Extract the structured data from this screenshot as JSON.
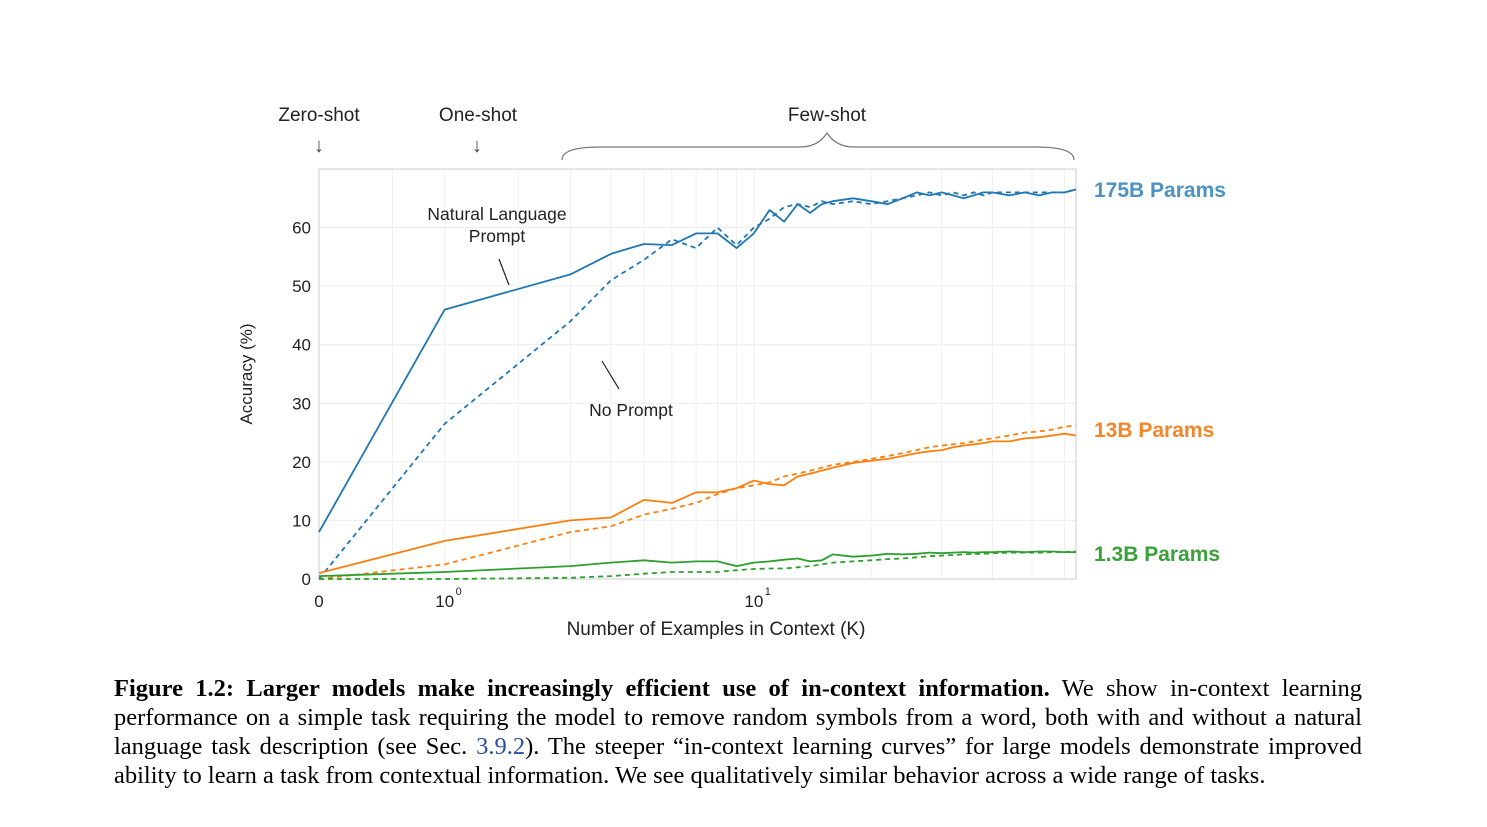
{
  "chart_data": {
    "type": "line",
    "xlabel": "Number of Examples in Context  (K)",
    "ylabel": "Accuracy (%)",
    "xscale": "symlog",
    "xlim": [
      0,
      64
    ],
    "ylim": [
      0,
      70
    ],
    "x_ticks": [
      {
        "value": 0,
        "base": "0",
        "exp": ""
      },
      {
        "value": 1,
        "base": "10",
        "exp": "0"
      },
      {
        "value": 10,
        "base": "10",
        "exp": "1"
      }
    ],
    "y_ticks": [
      0,
      10,
      20,
      30,
      40,
      50,
      60
    ],
    "grid": true,
    "regime_labels": {
      "zero_shot": "Zero-shot",
      "one_shot": "One-shot",
      "few_shot": "Few-shot"
    },
    "annotations": {
      "natural_language": [
        "Natural Language",
        "Prompt"
      ],
      "no_prompt": "No Prompt"
    },
    "colors": {
      "blue": "#1f77b4",
      "orange": "#ff7f0e",
      "green": "#2ca02c"
    },
    "model_labels": [
      {
        "text": "175B Params",
        "color": "#4b93c4"
      },
      {
        "text": "13B Params",
        "color": "#f2862a"
      },
      {
        "text": "1.3B Params",
        "color": "#3aa03a"
      }
    ],
    "series": [
      {
        "model": "175B",
        "prompt": "natural language",
        "style": "solid",
        "color": "#1f77b4",
        "x": [
          0,
          1,
          3,
          4,
          5,
          6,
          7,
          8,
          9,
          10,
          11,
          12,
          13,
          14,
          15,
          16,
          18,
          20,
          22,
          24,
          26,
          28,
          30,
          32,
          34,
          36,
          38,
          40,
          44,
          48,
          52,
          56,
          60,
          64
        ],
        "y": [
          8,
          46,
          52,
          55.5,
          57.2,
          57,
          59,
          59,
          56.5,
          59,
          63,
          61,
          64,
          62.5,
          64,
          64.5,
          65,
          64.5,
          64,
          65,
          66,
          65.5,
          66,
          65.5,
          65,
          65.5,
          66,
          66,
          65.5,
          66,
          65.5,
          66,
          66,
          66.5
        ]
      },
      {
        "model": "175B",
        "prompt": "none",
        "style": "dashed",
        "color": "#1f77b4",
        "x": [
          0,
          1,
          3,
          4,
          5,
          6,
          7,
          8,
          9,
          10,
          11,
          12,
          13,
          14,
          15,
          16,
          18,
          20,
          22,
          24,
          26,
          28,
          30,
          32,
          34,
          36,
          38,
          40,
          44,
          48,
          52,
          56,
          60,
          64
        ],
        "y": [
          0,
          26.5,
          44,
          51,
          54.5,
          58,
          56.5,
          60,
          57,
          60,
          61.5,
          63.5,
          64,
          63.5,
          64.5,
          64,
          64.5,
          64,
          64.5,
          65,
          65.5,
          66,
          65.5,
          66,
          65.5,
          66,
          65.5,
          66,
          66,
          66,
          66,
          66,
          66,
          66.5
        ]
      },
      {
        "model": "13B",
        "prompt": "natural language",
        "style": "solid",
        "color": "#ff7f0e",
        "x": [
          0,
          1,
          3,
          4,
          5,
          6,
          7,
          8,
          9,
          10,
          11,
          12,
          13,
          14,
          15,
          16,
          18,
          20,
          22,
          24,
          26,
          28,
          30,
          32,
          34,
          36,
          38,
          40,
          44,
          48,
          52,
          56,
          60,
          64
        ],
        "y": [
          1,
          6.5,
          10,
          10.5,
          13.5,
          13,
          14.8,
          14.8,
          15.5,
          16.8,
          16.2,
          16,
          17.5,
          18,
          18.5,
          19,
          19.8,
          20.2,
          20.5,
          21,
          21.5,
          21.8,
          22,
          22.5,
          22.8,
          23,
          23.2,
          23.5,
          23.5,
          24,
          24.2,
          24.5,
          24.8,
          24.5
        ]
      },
      {
        "model": "13B",
        "prompt": "none",
        "style": "dashed",
        "color": "#ff7f0e",
        "x": [
          0,
          1,
          3,
          4,
          5,
          6,
          7,
          8,
          9,
          10,
          11,
          12,
          13,
          14,
          15,
          16,
          18,
          20,
          22,
          24,
          26,
          28,
          30,
          32,
          34,
          36,
          38,
          40,
          44,
          48,
          52,
          56,
          60,
          64
        ],
        "y": [
          0,
          2.5,
          8,
          9,
          11,
          12,
          13,
          14.5,
          15.5,
          16,
          16.5,
          17.5,
          18,
          18.5,
          19,
          19.5,
          20,
          20.5,
          21,
          21.5,
          22,
          22.5,
          22.8,
          23,
          23.2,
          23.5,
          23.8,
          24,
          24.5,
          25,
          25.2,
          25.5,
          26,
          26.2
        ]
      },
      {
        "model": "1.3B",
        "prompt": "natural language",
        "style": "solid",
        "color": "#2ca02c",
        "x": [
          0,
          1,
          3,
          4,
          5,
          6,
          7,
          8,
          9,
          10,
          11,
          12,
          13,
          14,
          15,
          16,
          18,
          20,
          22,
          24,
          26,
          28,
          30,
          32,
          34,
          36,
          38,
          40,
          44,
          48,
          52,
          56,
          60,
          64
        ],
        "y": [
          0.5,
          1.2,
          2.2,
          2.8,
          3.2,
          2.8,
          3,
          3,
          2.2,
          2.8,
          3,
          3.3,
          3.5,
          3,
          3.2,
          4.2,
          3.8,
          4,
          4.3,
          4.2,
          4.3,
          4.5,
          4.4,
          4.5,
          4.6,
          4.5,
          4.6,
          4.6,
          4.7,
          4.6,
          4.7,
          4.7,
          4.6,
          4.6
        ]
      },
      {
        "model": "1.3B",
        "prompt": "none",
        "style": "dashed",
        "color": "#2ca02c",
        "x": [
          0,
          1,
          3,
          4,
          5,
          6,
          7,
          8,
          9,
          10,
          11,
          12,
          13,
          14,
          15,
          16,
          18,
          20,
          22,
          24,
          26,
          28,
          30,
          32,
          34,
          36,
          38,
          40,
          44,
          48,
          52,
          56,
          60,
          64
        ],
        "y": [
          0,
          0,
          0.2,
          0.5,
          0.9,
          1.2,
          1.2,
          1.2,
          1.5,
          1.7,
          1.8,
          1.8,
          2.0,
          2.2,
          2.5,
          2.8,
          3.0,
          3.2,
          3.4,
          3.5,
          3.7,
          3.9,
          4.0,
          4.1,
          4.2,
          4.3,
          4.3,
          4.4,
          4.5,
          4.5,
          4.5,
          4.6,
          4.6,
          4.7
        ]
      }
    ]
  },
  "caption": {
    "bold": "Figure 1.2: Larger models make increasingly efficient use of in-context information.",
    "text_1": " We show in-context learning performance on a simple task requiring the model to remove random symbols from a word, both with and without a natural language task description (see Sec. ",
    "ref": "3.9.2",
    "text_2": "). The steeper “in-context learning curves” for large models demonstrate improved ability to learn a task from contextual information. We see qualitatively similar behavior across a wide range of tasks."
  }
}
